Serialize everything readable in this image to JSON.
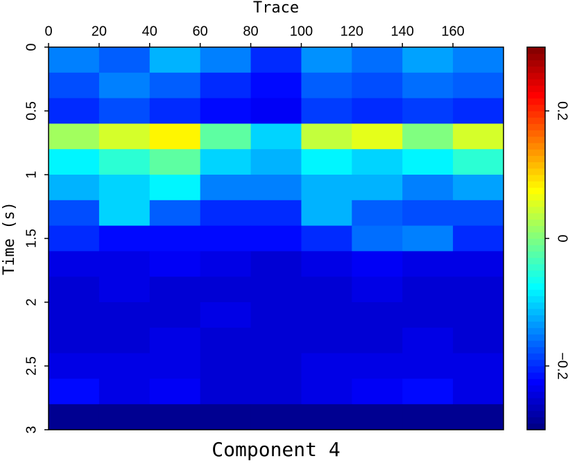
{
  "chart_data": {
    "type": "heatmap",
    "title": "Component 4",
    "x_label": "Trace",
    "y_label": "Time (s)",
    "colormap": "jet",
    "x": [
      10,
      30,
      50,
      70,
      90,
      110,
      130,
      150,
      170
    ],
    "y": [
      0.1,
      0.3,
      0.5,
      0.7,
      0.9,
      1.1,
      1.3,
      1.5,
      1.7,
      1.9,
      2.1,
      2.3,
      2.5,
      2.7,
      2.9
    ],
    "z": [
      [
        -0.15,
        -0.17,
        -0.12,
        -0.15,
        -0.2,
        -0.14,
        -0.16,
        -0.13,
        -0.15
      ],
      [
        -0.18,
        -0.15,
        -0.17,
        -0.2,
        -0.22,
        -0.17,
        -0.18,
        -0.16,
        -0.17
      ],
      [
        -0.2,
        -0.18,
        -0.2,
        -0.22,
        -0.23,
        -0.19,
        -0.2,
        -0.19,
        -0.2
      ],
      [
        0.02,
        0.05,
        0.08,
        -0.02,
        -0.1,
        0.04,
        0.06,
        0.0,
        0.05
      ],
      [
        -0.08,
        -0.05,
        -0.02,
        -0.1,
        -0.12,
        -0.08,
        -0.1,
        -0.08,
        -0.05
      ],
      [
        -0.12,
        -0.1,
        -0.08,
        -0.15,
        -0.15,
        -0.12,
        -0.12,
        -0.15,
        -0.13
      ],
      [
        -0.18,
        -0.1,
        -0.17,
        -0.2,
        -0.2,
        -0.12,
        -0.17,
        -0.18,
        -0.18
      ],
      [
        -0.2,
        -0.22,
        -0.22,
        -0.22,
        -0.22,
        -0.2,
        -0.16,
        -0.15,
        -0.2
      ],
      [
        -0.24,
        -0.24,
        -0.23,
        -0.24,
        -0.25,
        -0.24,
        -0.23,
        -0.24,
        -0.24
      ],
      [
        -0.25,
        -0.24,
        -0.25,
        -0.25,
        -0.25,
        -0.25,
        -0.24,
        -0.25,
        -0.25
      ],
      [
        -0.25,
        -0.25,
        -0.25,
        -0.24,
        -0.25,
        -0.25,
        -0.25,
        -0.25,
        -0.25
      ],
      [
        -0.25,
        -0.25,
        -0.24,
        -0.25,
        -0.25,
        -0.25,
        -0.25,
        -0.24,
        -0.25
      ],
      [
        -0.24,
        -0.24,
        -0.24,
        -0.25,
        -0.25,
        -0.24,
        -0.24,
        -0.24,
        -0.24
      ],
      [
        -0.22,
        -0.24,
        -0.23,
        -0.25,
        -0.25,
        -0.24,
        -0.23,
        -0.22,
        -0.24
      ],
      [
        -0.29,
        -0.29,
        -0.29,
        -0.29,
        -0.29,
        -0.29,
        -0.29,
        -0.29,
        -0.29
      ]
    ],
    "xlim": [
      0,
      180
    ],
    "xticks": [
      0,
      20,
      40,
      60,
      80,
      100,
      120,
      140,
      160
    ],
    "ylim": [
      0,
      3
    ],
    "yticks": [
      0,
      0.5,
      1,
      1.5,
      2,
      2.5,
      3
    ],
    "clim": [
      -0.3,
      0.3
    ],
    "cticks": [
      {
        "value": -0.2,
        "label": "−0.2"
      },
      0,
      0.2
    ]
  }
}
